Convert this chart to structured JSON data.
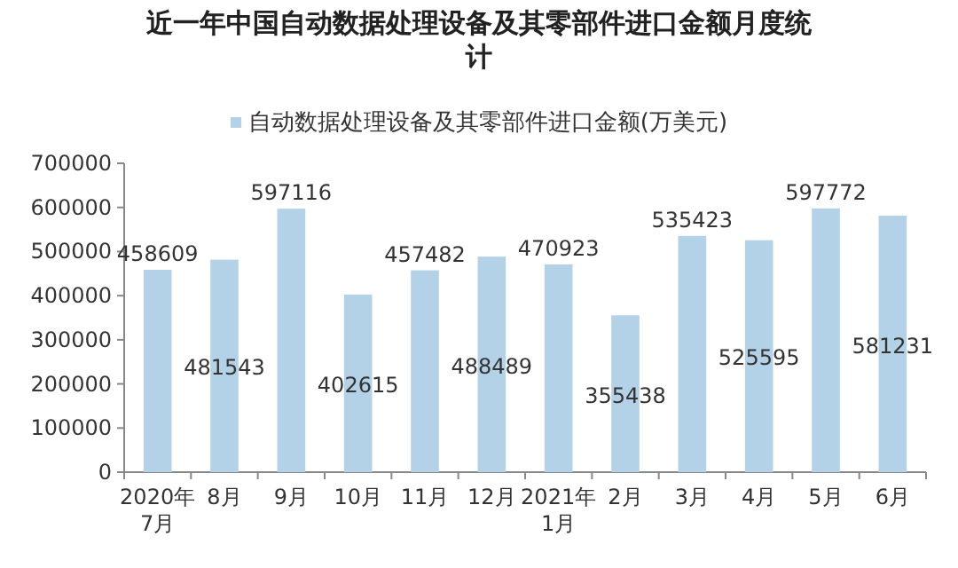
{
  "chart_data": {
    "type": "bar",
    "title": "近一年中国自动数据处理设备及其零部件进口金额月度统计",
    "categories": [
      "2020年7月",
      "8月",
      "9月",
      "10月",
      "11月",
      "12月",
      "2021年1月",
      "2月",
      "3月",
      "4月",
      "5月",
      "6月"
    ],
    "series": [
      {
        "name": "自动数据处理设备及其零部件进口金额(万美元)",
        "color": "#b4d2e7",
        "values": [
          458609,
          481543,
          597116,
          402615,
          457482,
          488489,
          470923,
          355438,
          535423,
          525595,
          597772,
          581231
        ]
      }
    ],
    "ylim": [
      0,
      700000
    ],
    "yticks": [
      0,
      100000,
      200000,
      300000,
      400000,
      500000,
      600000,
      700000
    ],
    "data_labels": true,
    "legend": "top",
    "grid": false
  }
}
